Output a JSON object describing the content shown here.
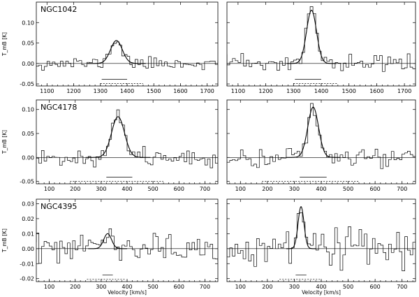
{
  "chart_data": [
    {
      "type": "line",
      "galaxy": "NGC1042",
      "ylabel": "T_mB [K]",
      "xlim": [
        1060,
        1740
      ],
      "ylim": [
        -0.055,
        0.15
      ],
      "xticks": [
        1100,
        1200,
        1300,
        1400,
        1500,
        1600,
        1700
      ],
      "yticks": [
        -0.05,
        0.0,
        0.05,
        0.1
      ],
      "ytick_labels": [
        "-0.05",
        "0.00",
        "0.05",
        "0.10"
      ],
      "show_yticklabels": true,
      "gaussian": {
        "center": 1360,
        "sigma": 22,
        "amplitude": 0.056
      },
      "noise": 0.0075,
      "seed": 11,
      "channel": 10,
      "solid_range": [
        1305,
        1400
      ],
      "dashed_range": [
        1300,
        1460
      ]
    },
    {
      "type": "line",
      "galaxy": "",
      "xlim": [
        1060,
        1740
      ],
      "ylim": [
        -0.055,
        0.15
      ],
      "xticks": [
        1100,
        1200,
        1300,
        1400,
        1500,
        1600,
        1700
      ],
      "yticks": [
        -0.05,
        0.0,
        0.05,
        0.1
      ],
      "show_yticklabels": false,
      "gaussian": {
        "center": 1365,
        "sigma": 18,
        "amplitude": 0.13
      },
      "noise": 0.011,
      "seed": 23,
      "channel": 10,
      "solid_range": [
        1305,
        1400
      ],
      "dashed_range": [
        1300,
        1460
      ]
    },
    {
      "type": "line",
      "galaxy": "NGC4178",
      "ylabel": "T_mB [K]",
      "xlim": [
        50,
        750
      ],
      "ylim": [
        -0.055,
        0.12
      ],
      "xticks": [
        100,
        200,
        300,
        400,
        500,
        600,
        700
      ],
      "yticks": [
        -0.05,
        0.0,
        0.05,
        0.1
      ],
      "ytick_labels": [
        "-0.05",
        "0.00",
        "0.05",
        "0.10"
      ],
      "show_yticklabels": true,
      "gaussian": {
        "center": 365,
        "sigma": 25,
        "amplitude": 0.085
      },
      "noise": 0.008,
      "seed": 37,
      "channel": 10,
      "solid_range": [
        320,
        420
      ],
      "dashed_range": [
        180,
        540
      ]
    },
    {
      "type": "line",
      "galaxy": "",
      "xlim": [
        50,
        750
      ],
      "ylim": [
        -0.055,
        0.12
      ],
      "xticks": [
        100,
        200,
        300,
        400,
        500,
        600,
        700
      ],
      "yticks": [
        -0.05,
        0.0,
        0.05,
        0.1
      ],
      "show_yticklabels": false,
      "gaussian": {
        "center": 370,
        "sigma": 20,
        "amplitude": 0.105
      },
      "noise": 0.011,
      "seed": 41,
      "channel": 10,
      "solid_range": [
        320,
        420
      ],
      "dashed_range": [
        180,
        540
      ]
    },
    {
      "type": "line",
      "galaxy": "NGC4395",
      "ylabel": "T_mB [K]",
      "xlabel": "Velocity [km/s]",
      "xlim": [
        50,
        750
      ],
      "ylim": [
        -0.022,
        0.033
      ],
      "xticks": [
        100,
        200,
        300,
        400,
        500,
        600,
        700
      ],
      "yticks": [
        -0.02,
        -0.01,
        0.0,
        0.01,
        0.02,
        0.03
      ],
      "ytick_labels": [
        "-0.02",
        "-0.01",
        "0.00",
        "0.01",
        "0.02",
        "0.03"
      ],
      "show_yticklabels": true,
      "gaussian": {
        "center": 325,
        "sigma": 15,
        "amplitude": 0.01
      },
      "noise": 0.0045,
      "seed": 53,
      "channel": 10,
      "solid_range": [
        305,
        345
      ],
      "dashed_range": [
        245,
        395
      ]
    },
    {
      "type": "line",
      "galaxy": "",
      "xlabel": "Velocity [km/s]",
      "xlim": [
        50,
        750
      ],
      "ylim": [
        -0.022,
        0.033
      ],
      "xticks": [
        100,
        200,
        300,
        400,
        500,
        600,
        700
      ],
      "yticks": [
        -0.02,
        -0.01,
        0.0,
        0.01,
        0.02,
        0.03
      ],
      "show_yticklabels": false,
      "gaussian": {
        "center": 325,
        "sigma": 11,
        "amplitude": 0.028
      },
      "noise": 0.0055,
      "seed": 67,
      "channel": 10,
      "solid_range": [
        305,
        345
      ],
      "dashed_range": [
        245,
        395
      ]
    }
  ]
}
